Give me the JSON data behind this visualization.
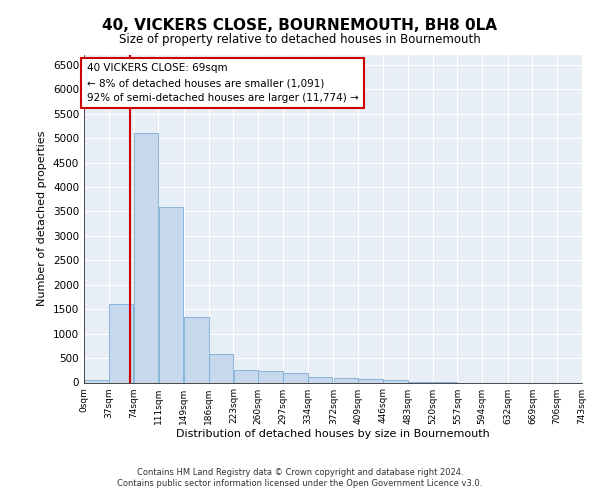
{
  "title": "40, VICKERS CLOSE, BOURNEMOUTH, BH8 0LA",
  "subtitle": "Size of property relative to detached houses in Bournemouth",
  "xlabel": "Distribution of detached houses by size in Bournemouth",
  "ylabel": "Number of detached properties",
  "footer_line1": "Contains HM Land Registry data © Crown copyright and database right 2024.",
  "footer_line2": "Contains public sector information licensed under the Open Government Licence v3.0.",
  "property_size": 69,
  "annotation_title": "40 VICKERS CLOSE: 69sqm",
  "annotation_line1": "← 8% of detached houses are smaller (1,091)",
  "annotation_line2": "92% of semi-detached houses are larger (11,774) →",
  "bar_color": "#c8d8ec",
  "bar_edge_color": "#7aaed4",
  "redline_color": "#cc0000",
  "bg_color": "#e8eef6",
  "bin_edges": [
    0,
    37,
    74,
    111,
    149,
    186,
    223,
    260,
    297,
    334,
    372,
    409,
    446,
    483,
    520,
    557,
    594,
    632,
    669,
    706,
    743
  ],
  "bin_labels": [
    "0sqm",
    "37sqm",
    "74sqm",
    "111sqm",
    "149sqm",
    "186sqm",
    "223sqm",
    "260sqm",
    "297sqm",
    "334sqm",
    "372sqm",
    "409sqm",
    "446sqm",
    "483sqm",
    "520sqm",
    "557sqm",
    "594sqm",
    "632sqm",
    "669sqm",
    "706sqm",
    "743sqm"
  ],
  "counts": [
    50,
    1600,
    5100,
    3600,
    1350,
    590,
    265,
    230,
    185,
    120,
    95,
    75,
    55,
    10,
    5,
    0,
    0,
    0,
    0,
    0
  ],
  "ylim": [
    0,
    6700
  ],
  "yticks": [
    0,
    500,
    1000,
    1500,
    2000,
    2500,
    3000,
    3500,
    4000,
    4500,
    5000,
    5500,
    6000,
    6500
  ]
}
